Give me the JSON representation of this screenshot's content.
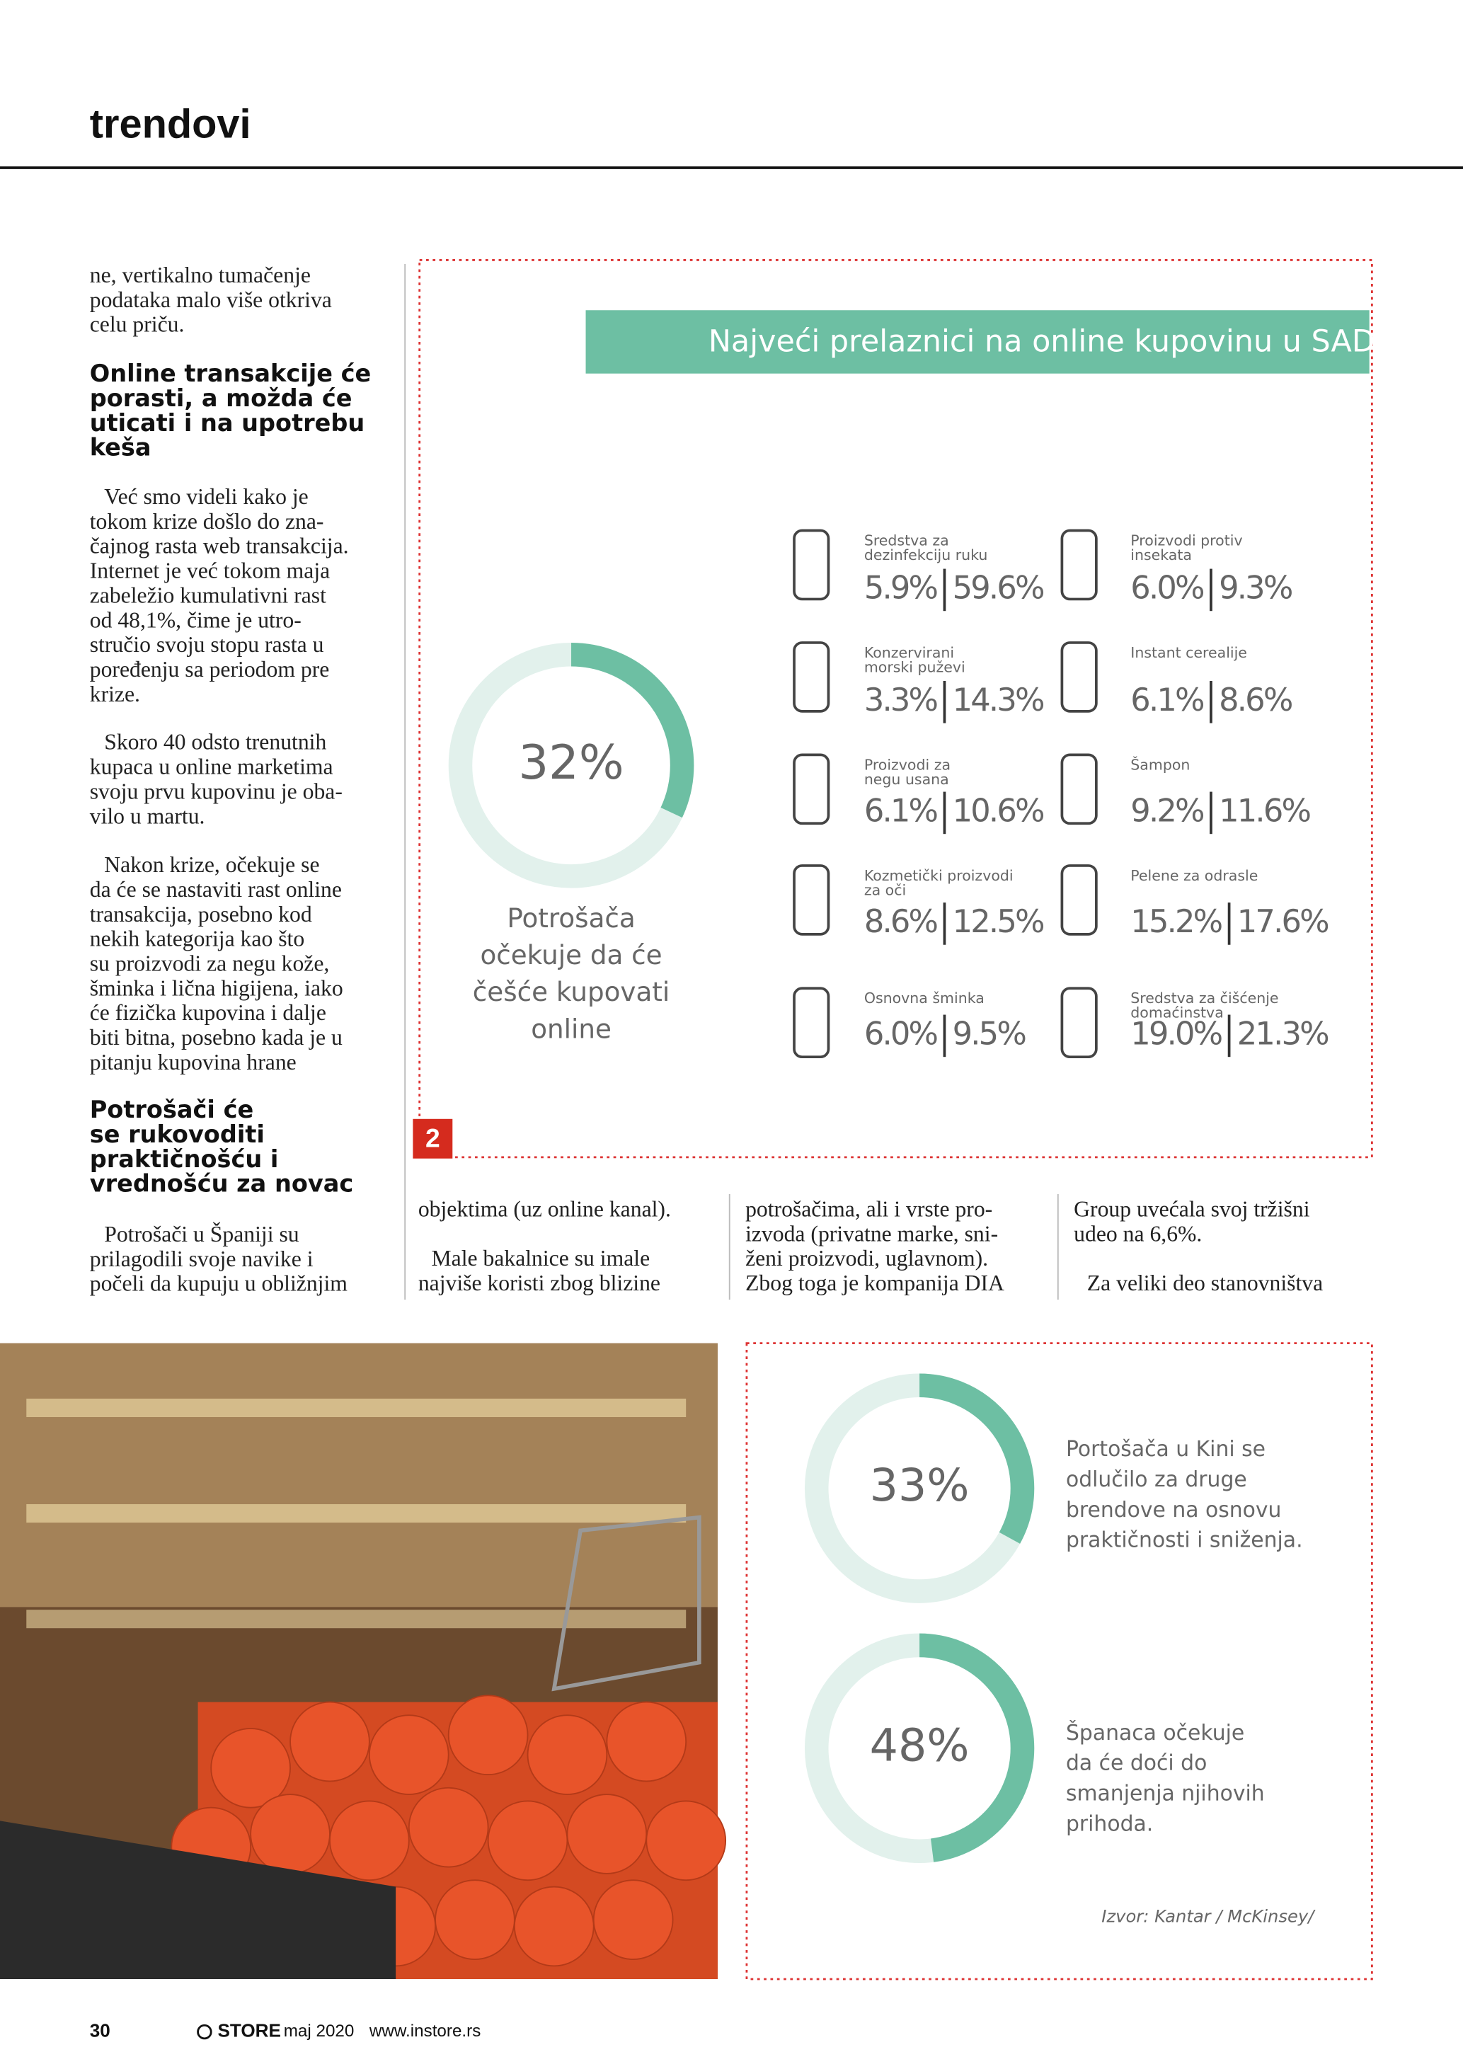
{
  "header": {
    "section": "trendovi"
  },
  "left_column": {
    "intro": [
      "ne, vertikalno tumačenje",
      "podataka malo više otkriva",
      "celu priču."
    ],
    "heading1": [
      "Online transakcije će",
      "porasti, a možda će",
      "uticati i na upotrebu",
      "keša"
    ],
    "paragraphs": [
      [
        "Već smo videli kako je",
        "tokom krize došlo do zna-",
        "čajnog rasta web transakcija.",
        "Internet je već tokom maja",
        "zabeležio kumulativni rast",
        "od 48,1%, čime je utro-",
        "stručio svoju stopu rasta u",
        "poređenju sa periodom pre",
        "krize."
      ],
      [
        "Skoro 40 odsto trenutnih",
        "kupaca u online marketima",
        "svoju prvu kupovinu je oba-",
        "vilo u martu."
      ],
      [
        "Nakon krize, očekuje se",
        "da će se nastaviti rast online",
        "transakcija, posebno kod",
        "nekih kategorija kao što",
        "su proizvodi za negu kože,",
        "šminka i lična higijena, iako",
        "će fizička kupovina i dalje",
        "biti bitna, posebno kada je u",
        "pitanju kupovina hrane"
      ]
    ],
    "heading2": [
      "Potrošači će",
      "se rukovoditi",
      "praktičnošću i",
      "vrednošću za novac"
    ],
    "last_paragraph": [
      "Potrošači  u Španiji su",
      "prilagodili svoje navike i",
      "počeli da kupuju u obližnjim"
    ]
  },
  "infographic1": {
    "title": "Najveći prelaznici na online kupovinu  u SAD",
    "donut": {
      "value": 32,
      "label": "32%",
      "caption": [
        "Potrošača",
        "očekuje da će",
        "češće kupovati",
        "online"
      ]
    },
    "items": [
      {
        "name": [
          "Sredstva za",
          "dezinfekciju ruku"
        ],
        "before": "5.9%",
        "after": "59.6%"
      },
      {
        "name": [
          "Konzervirani",
          "morski puževi"
        ],
        "before": "3.3%",
        "after": "14.3%"
      },
      {
        "name": [
          "Proizvodi za",
          "negu usana"
        ],
        "before": "6.1%",
        "after": "10.6%"
      },
      {
        "name": [
          "Kozmetički proizvodi",
          "za oči"
        ],
        "before": "8.6%",
        "after": "12.5%"
      },
      {
        "name": [
          "Osnovna šminka"
        ],
        "before": "6.0%",
        "after": "9.5%"
      },
      {
        "name": [
          "Proizvodi protiv",
          "insekata"
        ],
        "before": "6.0%",
        "after": "9.3%"
      },
      {
        "name": [
          "Instant cerealije"
        ],
        "before": "6.1%",
        "after": "8.6%"
      },
      {
        "name": [
          "Šampon"
        ],
        "before": "9.2%",
        "after": "11.6%"
      },
      {
        "name": [
          "Pelene za odrasle"
        ],
        "before": "15.2%",
        "after": "17.6%"
      },
      {
        "name": [
          "Sredstva za čišćenje",
          "domaćinstva"
        ],
        "before": "19.0%",
        "after": "21.3%"
      }
    ]
  },
  "figure_number": "2",
  "columns": [
    [
      [
        "objektima (uz online kanal)."
      ],
      [
        "Male bakalnice su imale",
        "najviše koristi zbog blizine"
      ]
    ],
    [
      [
        "potrošačima, ali i vrste pro-",
        "izvoda (privatne marke, sni-",
        "ženi proizvodi, uglavnom).",
        "Zbog toga je kompanija DIA"
      ]
    ],
    [
      [
        "Group uvećala svoj tržišni",
        "udeo na 6,6%."
      ],
      [
        "Za veliki deo stanovništva"
      ]
    ]
  ],
  "infographic2": {
    "donuts": [
      {
        "value": 33,
        "label": "33%",
        "caption": [
          "Portošača u Kini se",
          "odlučilo za druge",
          "brendove na osnovu",
          "praktičnosti i sniženja."
        ]
      },
      {
        "value": 48,
        "label": "48%",
        "caption": [
          "Španaca očekuje",
          "da će doći do",
          "smanjenja njihovih",
          "prihoda."
        ]
      }
    ],
    "source": "Izvor: Kantar / McKinsey/"
  },
  "footer": {
    "page": "30",
    "brand": "STORE",
    "issue": "maj 2020",
    "url": "www.instore.rs"
  }
}
